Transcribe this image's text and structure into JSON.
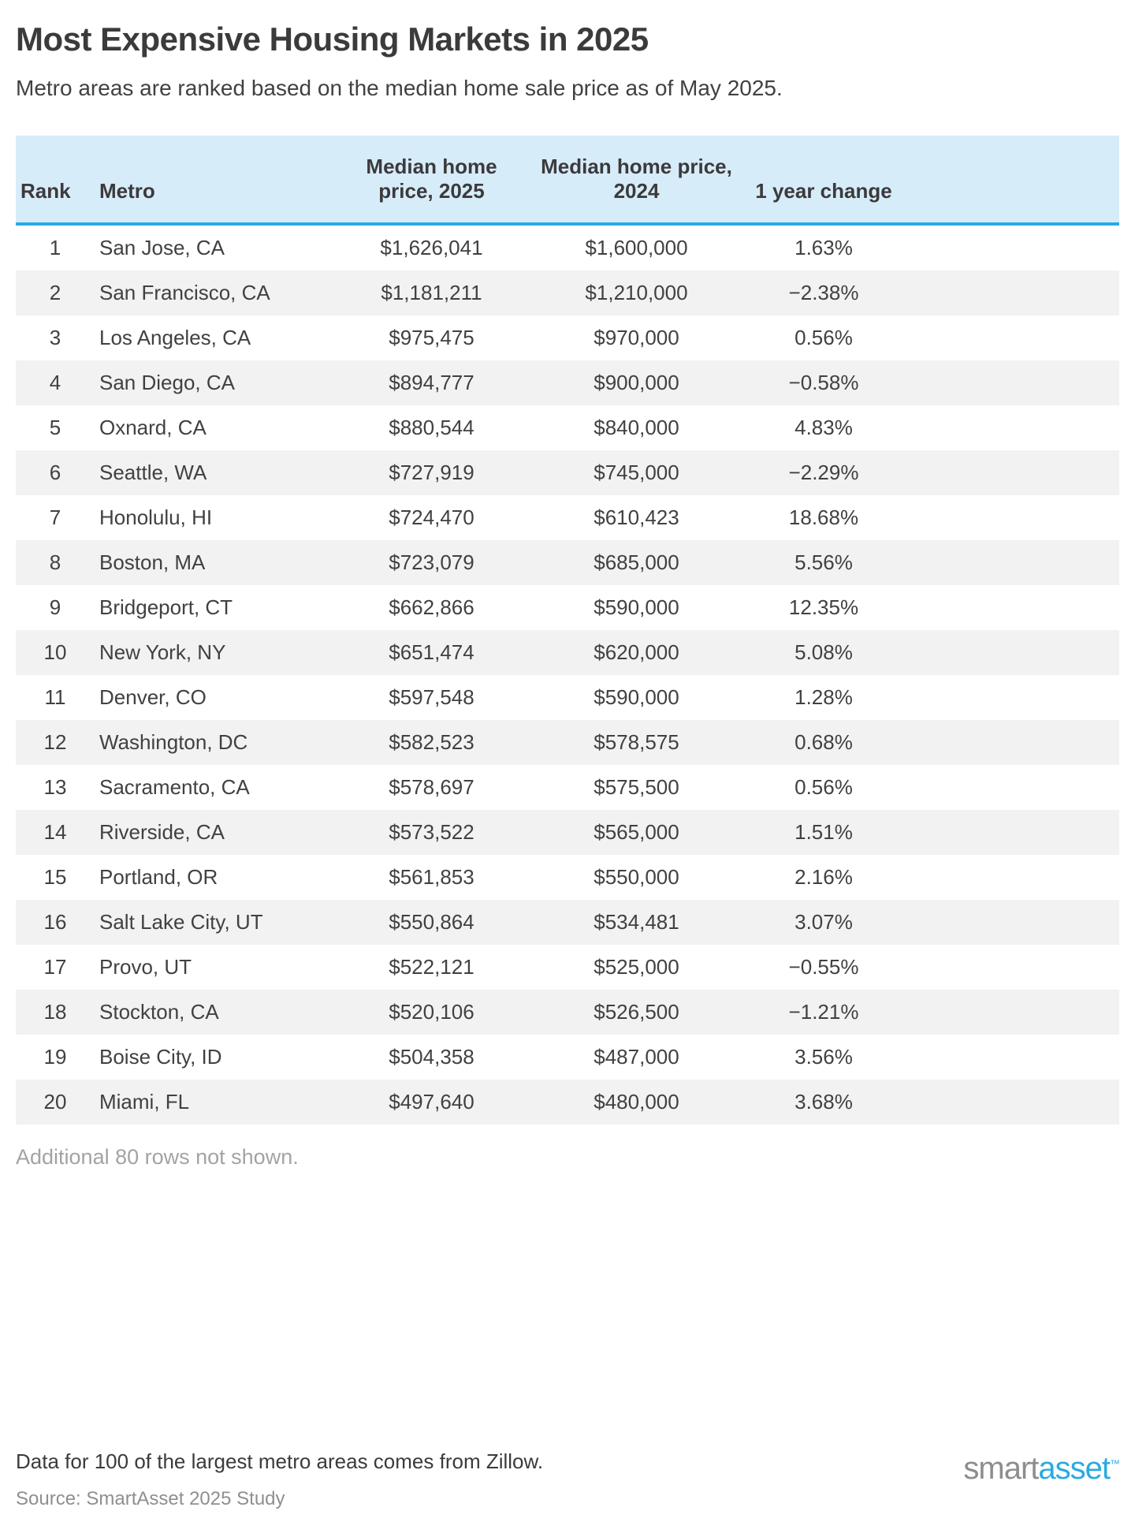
{
  "page": {
    "title": "Most Expensive Housing Markets in 2025",
    "subtitle": "Metro areas are ranked based on the median home sale price as of May 2025.",
    "footnote": "Additional 80 rows not shown.",
    "data_note": "Data for 100 of the largest metro areas comes from Zillow.",
    "source": "Source: SmartAsset 2025 Study",
    "logo": {
      "part1": "smart",
      "part2": "asset",
      "tm": "™"
    }
  },
  "colors": {
    "header_background": "#d7ecf9",
    "header_border": "#29aae2",
    "zebra_row": "#f2f2f2",
    "text": "#414042",
    "footnote_gray": "#a3a3a3",
    "logo_gray": "#8d8d8d",
    "logo_blue": "#29aae2"
  },
  "table": {
    "headers": [
      "Rank",
      "Metro",
      "Median home price, 2025",
      "Median home price, 2024",
      "1 year change"
    ]
  },
  "chart_data": {
    "type": "table",
    "title": "Most Expensive Housing Markets in 2025",
    "subtitle": "Metro areas are ranked based on the median home sale price as of May 2025.",
    "columns": [
      "Rank",
      "Metro",
      "Median home price, 2025",
      "Median home price, 2024",
      "1 year change"
    ],
    "rows": [
      [
        "1",
        "San Jose, CA",
        "$1,626,041",
        "$1,600,000",
        "1.63%"
      ],
      [
        "2",
        "San Francisco, CA",
        "$1,181,211",
        "$1,210,000",
        "−2.38%"
      ],
      [
        "3",
        "Los Angeles, CA",
        "$975,475",
        "$970,000",
        "0.56%"
      ],
      [
        "4",
        "San Diego, CA",
        "$894,777",
        "$900,000",
        "−0.58%"
      ],
      [
        "5",
        "Oxnard, CA",
        "$880,544",
        "$840,000",
        "4.83%"
      ],
      [
        "6",
        "Seattle, WA",
        "$727,919",
        "$745,000",
        "−2.29%"
      ],
      [
        "7",
        "Honolulu, HI",
        "$724,470",
        "$610,423",
        "18.68%"
      ],
      [
        "8",
        "Boston, MA",
        "$723,079",
        "$685,000",
        "5.56%"
      ],
      [
        "9",
        "Bridgeport, CT",
        "$662,866",
        "$590,000",
        "12.35%"
      ],
      [
        "10",
        "New York, NY",
        "$651,474",
        "$620,000",
        "5.08%"
      ],
      [
        "11",
        "Denver, CO",
        "$597,548",
        "$590,000",
        "1.28%"
      ],
      [
        "12",
        "Washington, DC",
        "$582,523",
        "$578,575",
        "0.68%"
      ],
      [
        "13",
        "Sacramento, CA",
        "$578,697",
        "$575,500",
        "0.56%"
      ],
      [
        "14",
        "Riverside, CA",
        "$573,522",
        "$565,000",
        "1.51%"
      ],
      [
        "15",
        "Portland, OR",
        "$561,853",
        "$550,000",
        "2.16%"
      ],
      [
        "16",
        "Salt Lake City, UT",
        "$550,864",
        "$534,481",
        "3.07%"
      ],
      [
        "17",
        "Provo, UT",
        "$522,121",
        "$525,000",
        "−0.55%"
      ],
      [
        "18",
        "Stockton, CA",
        "$520,106",
        "$526,500",
        "−1.21%"
      ],
      [
        "19",
        "Boise City, ID",
        "$504,358",
        "$487,000",
        "3.56%"
      ],
      [
        "20",
        "Miami, FL",
        "$497,640",
        "$480,000",
        "3.68%"
      ]
    ]
  }
}
